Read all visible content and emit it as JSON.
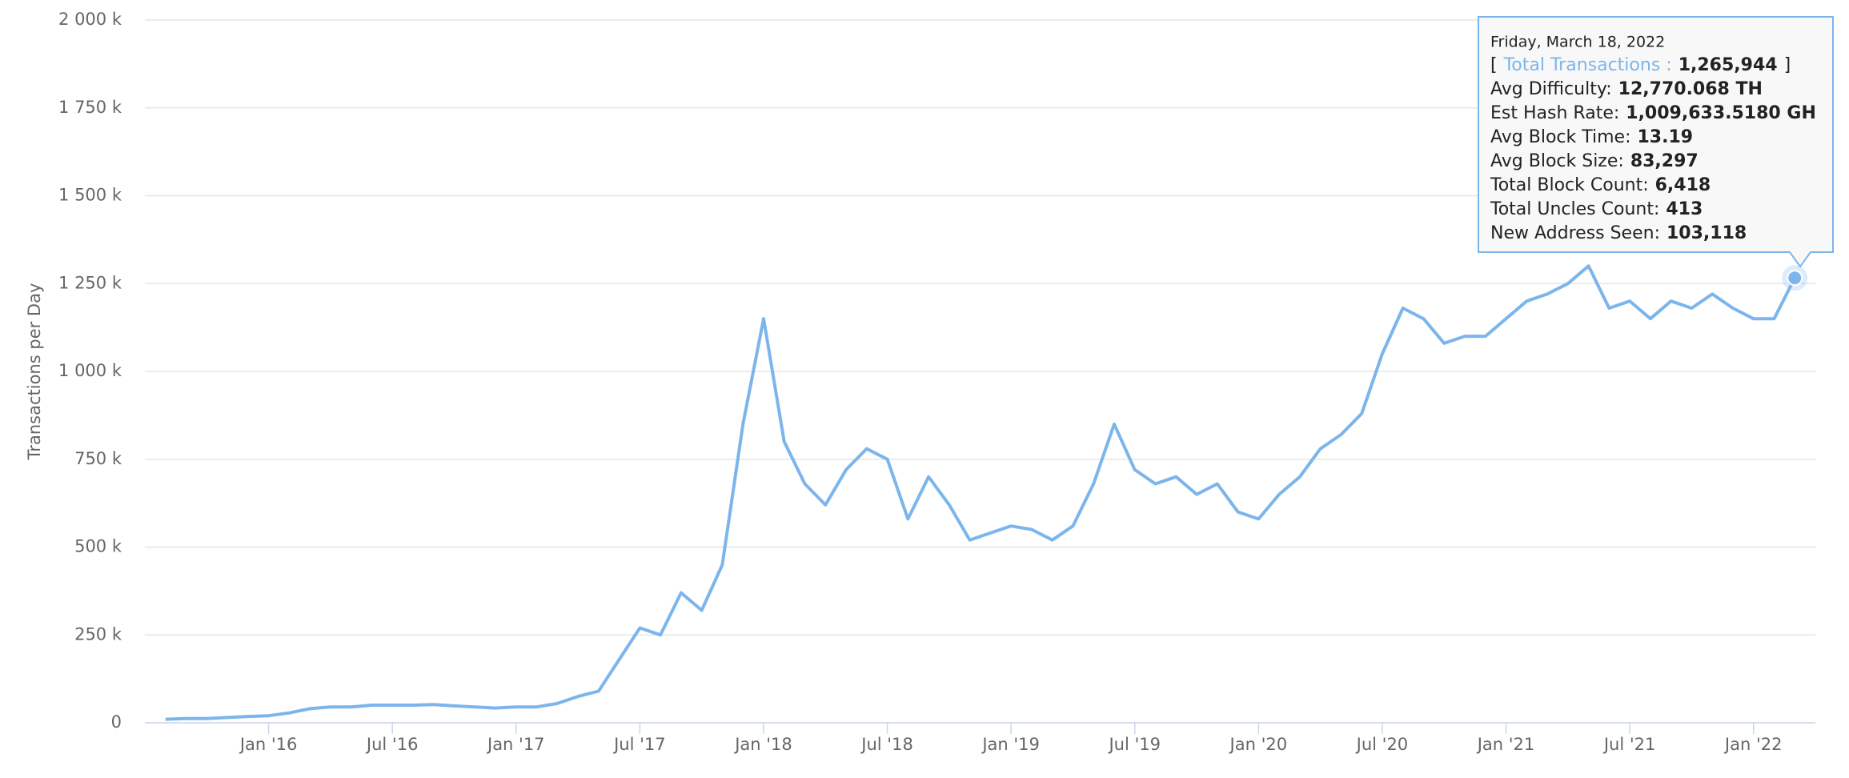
{
  "chart_data": {
    "type": "line",
    "y_label": "Transactions per Day",
    "grid": true,
    "series": [
      {
        "name": "Total Transactions",
        "color": "#7cb5ec",
        "values": [
          10000,
          12000,
          12000,
          15000,
          18000,
          20000,
          28000,
          40000,
          45000,
          45000,
          50000,
          50000,
          50000,
          52000,
          48000,
          45000,
          42000,
          45000,
          45000,
          55000,
          75000,
          90000,
          180000,
          270000,
          250000,
          370000,
          320000,
          450000,
          850000,
          1150000,
          800000,
          680000,
          620000,
          720000,
          780000,
          750000,
          580000,
          700000,
          620000,
          520000,
          540000,
          560000,
          550000,
          520000,
          560000,
          680000,
          850000,
          720000,
          680000,
          700000,
          650000,
          680000,
          600000,
          580000,
          650000,
          700000,
          780000,
          820000,
          880000,
          1050000,
          1180000,
          1150000,
          1080000,
          1100000,
          1100000,
          1150000,
          1200000,
          1220000,
          1250000,
          1300000,
          1180000,
          1200000,
          1150000,
          1200000,
          1180000,
          1220000,
          1180000,
          1150000,
          1150000,
          1265944
        ]
      }
    ],
    "x": [
      "2015-08",
      "2015-09",
      "2015-10",
      "2015-11",
      "2015-12",
      "2016-01",
      "2016-02",
      "2016-03",
      "2016-04",
      "2016-05",
      "2016-06",
      "2016-07",
      "2016-08",
      "2016-09",
      "2016-10",
      "2016-11",
      "2016-12",
      "2017-01",
      "2017-02",
      "2017-03",
      "2017-04",
      "2017-05",
      "2017-06",
      "2017-07",
      "2017-08",
      "2017-09",
      "2017-10",
      "2017-11",
      "2017-12",
      "2018-01",
      "2018-02",
      "2018-03",
      "2018-04",
      "2018-05",
      "2018-06",
      "2018-07",
      "2018-08",
      "2018-09",
      "2018-10",
      "2018-11",
      "2018-12",
      "2019-01",
      "2019-02",
      "2019-03",
      "2019-04",
      "2019-05",
      "2019-06",
      "2019-07",
      "2019-08",
      "2019-09",
      "2019-10",
      "2019-11",
      "2019-12",
      "2020-01",
      "2020-02",
      "2020-03",
      "2020-04",
      "2020-05",
      "2020-06",
      "2020-07",
      "2020-08",
      "2020-09",
      "2020-10",
      "2020-11",
      "2020-12",
      "2021-01",
      "2021-02",
      "2021-03",
      "2021-04",
      "2021-05",
      "2021-06",
      "2021-07",
      "2021-08",
      "2021-09",
      "2021-10",
      "2021-11",
      "2021-12",
      "2022-01",
      "2022-02",
      "2022-03"
    ],
    "xlim": [
      "2015-07",
      "2022-04"
    ],
    "xticks": [
      {
        "value": "2016-01",
        "label": "Jan '16"
      },
      {
        "value": "2016-07",
        "label": "Jul '16"
      },
      {
        "value": "2017-01",
        "label": "Jan '17"
      },
      {
        "value": "2017-07",
        "label": "Jul '17"
      },
      {
        "value": "2018-01",
        "label": "Jan '18"
      },
      {
        "value": "2018-07",
        "label": "Jul '18"
      },
      {
        "value": "2019-01",
        "label": "Jan '19"
      },
      {
        "value": "2019-07",
        "label": "Jul '19"
      },
      {
        "value": "2020-01",
        "label": "Jan '20"
      },
      {
        "value": "2020-07",
        "label": "Jul '20"
      },
      {
        "value": "2021-01",
        "label": "Jan '21"
      },
      {
        "value": "2021-07",
        "label": "Jul '21"
      },
      {
        "value": "2022-01",
        "label": "Jan '22"
      }
    ],
    "ylim": [
      0,
      2000000
    ],
    "yticks": [
      0,
      {
        "value": 250000,
        "label": "250 k"
      },
      {
        "value": 500000,
        "label": "500 k"
      },
      {
        "value": 750000,
        "label": "750 k"
      },
      {
        "value": 1000000,
        "label": "1 000 k"
      },
      {
        "value": 1250000,
        "label": "1 250 k"
      },
      {
        "value": 1500000,
        "label": "1 500 k"
      },
      {
        "value": 1750000,
        "label": "1 750 k"
      },
      {
        "value": 2000000,
        "label": "2 000 k"
      }
    ],
    "tooltip": {
      "date": "Friday, March 18, 2022",
      "bracket_open": "[",
      "bracket_close": "]",
      "items": [
        {
          "label": "Total Transactions :",
          "value": "1,265,944"
        },
        {
          "label": "Avg Difficulty:",
          "value": "12,770.068 TH"
        },
        {
          "label": "Est Hash Rate:",
          "value": "1,009,633.5180 GH"
        },
        {
          "label": "Avg Block Time:",
          "value": "13.19"
        },
        {
          "label": "Avg Block Size:",
          "value": "83,297"
        },
        {
          "label": "Total Block Count:",
          "value": "6,418"
        },
        {
          "label": "Total Uncles Count:",
          "value": "413"
        },
        {
          "label": "New Address Seen:",
          "value": "103,118"
        }
      ]
    }
  }
}
